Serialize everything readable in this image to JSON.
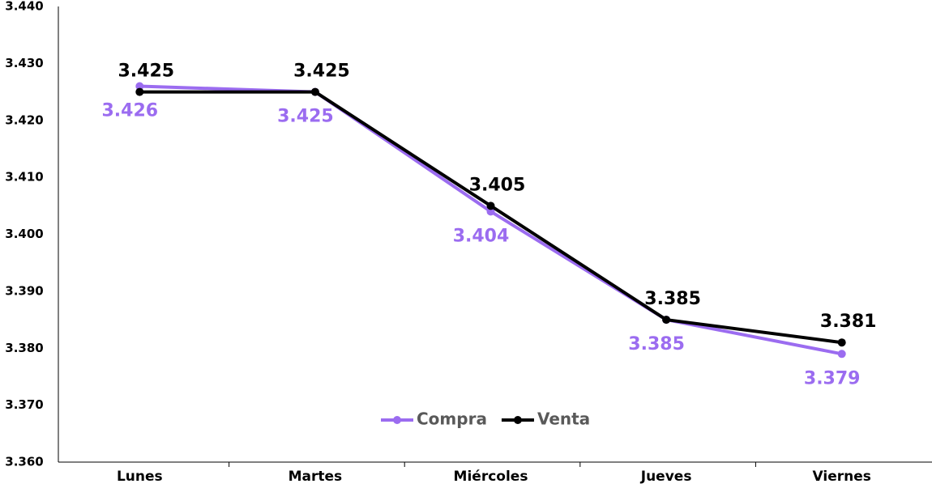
{
  "chart_data": {
    "type": "line",
    "categories": [
      "Lunes",
      "Martes",
      "Miércoles",
      "Jueves",
      "Viernes"
    ],
    "series": [
      {
        "name": "Compra",
        "color": "#9b6cf0",
        "values": [
          3.426,
          3.425,
          3.404,
          3.385,
          3.379
        ]
      },
      {
        "name": "Venta",
        "color": "#000000",
        "values": [
          3.425,
          3.425,
          3.405,
          3.385,
          3.381
        ]
      }
    ],
    "ylim": [
      3.36,
      3.44
    ],
    "yticks": [
      {
        "value": 3.36,
        "label": "3.360"
      },
      {
        "value": 3.37,
        "label": "3.370"
      },
      {
        "value": 3.38,
        "label": "3.380"
      },
      {
        "value": 3.39,
        "label": "3.390"
      },
      {
        "value": 3.4,
        "label": "3.400"
      },
      {
        "value": 3.41,
        "label": "3.410"
      },
      {
        "value": 3.42,
        "label": "3.420"
      },
      {
        "value": 3.43,
        "label": "3.430"
      },
      {
        "value": 3.44,
        "label": "3.440"
      }
    ],
    "grid": false,
    "legend": "bottom"
  }
}
